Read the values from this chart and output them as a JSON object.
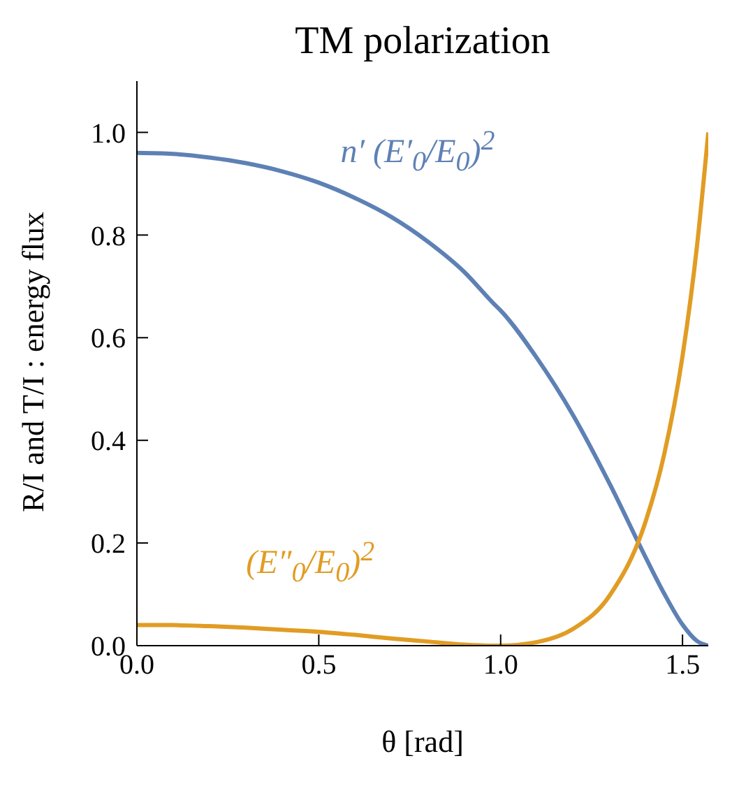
{
  "chart_data": {
    "type": "line",
    "title": "TM polarization",
    "xlabel": "θ [rad]",
    "ylabel": "R/I and T/I : energy flux",
    "x": [
      0,
      0.1,
      0.2,
      0.3,
      0.4,
      0.5,
      0.6,
      0.7,
      0.8,
      0.9,
      0.98,
      1.0,
      1.1,
      1.2,
      1.3,
      1.4,
      1.45,
      1.5,
      1.54,
      1.5708
    ],
    "series": [
      {
        "name": "n′ (E′$_{0}$/E$_{0}$)$^{2}$",
        "color": "#5e81b5",
        "values": [
          0.96,
          0.958,
          0.951,
          0.94,
          0.924,
          0.902,
          0.872,
          0.835,
          0.787,
          0.728,
          0.667,
          0.653,
          0.56,
          0.448,
          0.315,
          0.17,
          0.101,
          0.041,
          0.009,
          0
        ]
      },
      {
        "name": "(E″$_{0}$/E$_{0}$)$^{2}$",
        "color": "#e19c24",
        "values": [
          0.04,
          0.04,
          0.038,
          0.035,
          0.031,
          0.027,
          0.021,
          0.014,
          0.008,
          0.002,
          0,
          0,
          0.007,
          0.033,
          0.098,
          0.245,
          0.374,
          0.564,
          0.78,
          1
        ]
      }
    ],
    "xlim": [
      0,
      1.5708
    ],
    "ylim": [
      0,
      1.1
    ],
    "xticks": [
      {
        "value": 0,
        "label": "0.0"
      },
      {
        "value": 0.5,
        "label": "0.5"
      },
      {
        "value": 1,
        "label": "1.0"
      },
      {
        "value": 1.5,
        "label": "1.5"
      }
    ],
    "yticks": [
      {
        "value": 0,
        "label": "0.0"
      },
      {
        "value": 0.2,
        "label": "0.2"
      },
      {
        "value": 0.4,
        "label": "0.4"
      },
      {
        "value": 0.6,
        "label": "0.6"
      },
      {
        "value": 0.8,
        "label": "0.8"
      },
      {
        "value": 1,
        "label": "1.0"
      }
    ],
    "marker": "none"
  }
}
